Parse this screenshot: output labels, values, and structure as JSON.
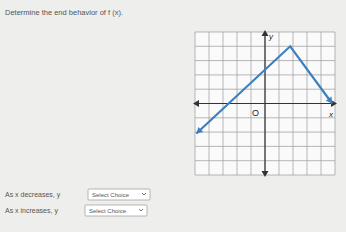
{
  "prompt": "Determine the end behavior of f (x).",
  "chart_data": {
    "type": "line",
    "x": [
      -4.9,
      1.8,
      4.8
    ],
    "values": [
      -2.1,
      4,
      0
    ],
    "color": "#3d7fc0",
    "xlabel": "x",
    "ylabel": "y",
    "origin_label": "O",
    "xlim": [
      -5,
      5
    ],
    "ylim": [
      -5,
      5
    ],
    "xticks": [
      -5,
      -4,
      -3,
      -2,
      -1,
      0,
      1,
      2,
      3,
      4,
      5
    ],
    "yticks": [
      -5,
      -4,
      -3,
      -2,
      -1,
      0,
      1,
      2,
      3,
      4,
      5
    ],
    "grid": true,
    "tick_labels": false,
    "marker": "arrow"
  },
  "questions": [
    {
      "text": "As x decreases, y",
      "choice": "Select Choice"
    },
    {
      "text": "As x increases, y",
      "choice": "Select Choice"
    }
  ]
}
